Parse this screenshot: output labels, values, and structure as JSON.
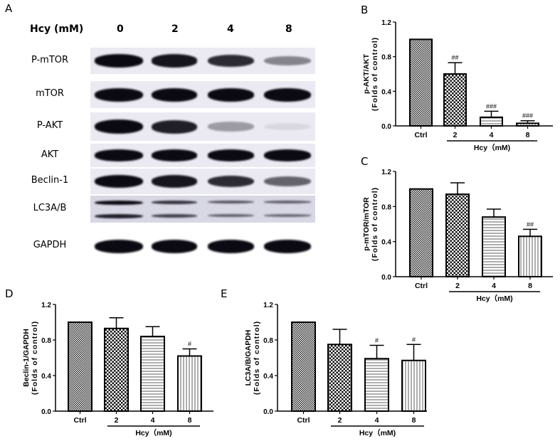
{
  "panels": {
    "A": {
      "letter": "A",
      "header_label": "Hcy (mM)",
      "lanes": [
        "0",
        "2",
        "4",
        "8"
      ],
      "rows": [
        {
          "label": "P-mTOR",
          "intensity": [
            1.0,
            0.95,
            0.85,
            0.45
          ]
        },
        {
          "label": "mTOR",
          "intensity": [
            1.0,
            1.0,
            1.0,
            1.0
          ]
        },
        {
          "label": "P-AKT",
          "intensity": [
            1.0,
            0.9,
            0.35,
            0.05
          ]
        },
        {
          "label": "AKT",
          "intensity": [
            1.0,
            1.0,
            1.0,
            1.0
          ]
        },
        {
          "label": "Beclin-1",
          "intensity": [
            1.0,
            0.95,
            0.85,
            0.6
          ]
        },
        {
          "label": "LC3A/B",
          "intensity": [
            1.0,
            0.8,
            0.65,
            0.6
          ]
        },
        {
          "label": "GAPDH",
          "intensity": [
            1.0,
            1.0,
            1.0,
            1.0
          ]
        }
      ]
    },
    "B": {
      "letter": "B"
    },
    "C": {
      "letter": "C"
    },
    "D": {
      "letter": "D"
    },
    "E": {
      "letter": "E"
    }
  },
  "chart_data": [
    {
      "panel": "B",
      "type": "bar",
      "categories": [
        "Ctrl",
        "2",
        "4",
        "8"
      ],
      "values": [
        1.0,
        0.6,
        0.1,
        0.03
      ],
      "errors": [
        0,
        0.13,
        0.07,
        0.03
      ],
      "significance": [
        "",
        "##",
        "###",
        "###"
      ],
      "ylabel": "p-AKT/AKT",
      "ylabel2": "(Folds of control)",
      "xlabel": "Hcy（mM)",
      "yticks": [
        "0.0",
        "0.4",
        "0.8",
        "1.2"
      ],
      "ylim": [
        0,
        1.2
      ]
    },
    {
      "panel": "C",
      "type": "bar",
      "categories": [
        "Ctrl",
        "2",
        "4",
        "8"
      ],
      "values": [
        1.0,
        0.94,
        0.68,
        0.46
      ],
      "errors": [
        0,
        0.13,
        0.09,
        0.08
      ],
      "significance": [
        "",
        "",
        "",
        "##"
      ],
      "ylabel": "p-mTOR/mTOR",
      "ylabel2": "(Folds of control)",
      "xlabel": "Hcy（mM)",
      "yticks": [
        "0.0",
        "0.4",
        "0.8",
        "1.2"
      ],
      "ylim": [
        0,
        1.2
      ]
    },
    {
      "panel": "D",
      "type": "bar",
      "categories": [
        "Ctrl",
        "2",
        "4",
        "8"
      ],
      "values": [
        1.0,
        0.93,
        0.84,
        0.62
      ],
      "errors": [
        0,
        0.12,
        0.11,
        0.08
      ],
      "significance": [
        "",
        "",
        "",
        "#"
      ],
      "ylabel": "Beclin-1/GAPDH",
      "ylabel2": "(Folds of control)",
      "xlabel": "Hcy（mM)",
      "yticks": [
        "0.0",
        "0.4",
        "0.8",
        "1.2"
      ],
      "ylim": [
        0,
        1.2
      ]
    },
    {
      "panel": "E",
      "type": "bar",
      "categories": [
        "Ctrl",
        "2",
        "4",
        "8"
      ],
      "values": [
        1.0,
        0.75,
        0.59,
        0.57
      ],
      "errors": [
        0,
        0.17,
        0.15,
        0.18
      ],
      "significance": [
        "",
        "",
        "#",
        "#"
      ],
      "ylabel": "LC3A/B/GAPDH",
      "ylabel2": "(Folds of control)",
      "xlabel": "Hcy（mM)",
      "yticks": [
        "0.0",
        "0.4",
        "0.8",
        "1.2"
      ],
      "ylim": [
        0,
        1.2
      ]
    }
  ]
}
